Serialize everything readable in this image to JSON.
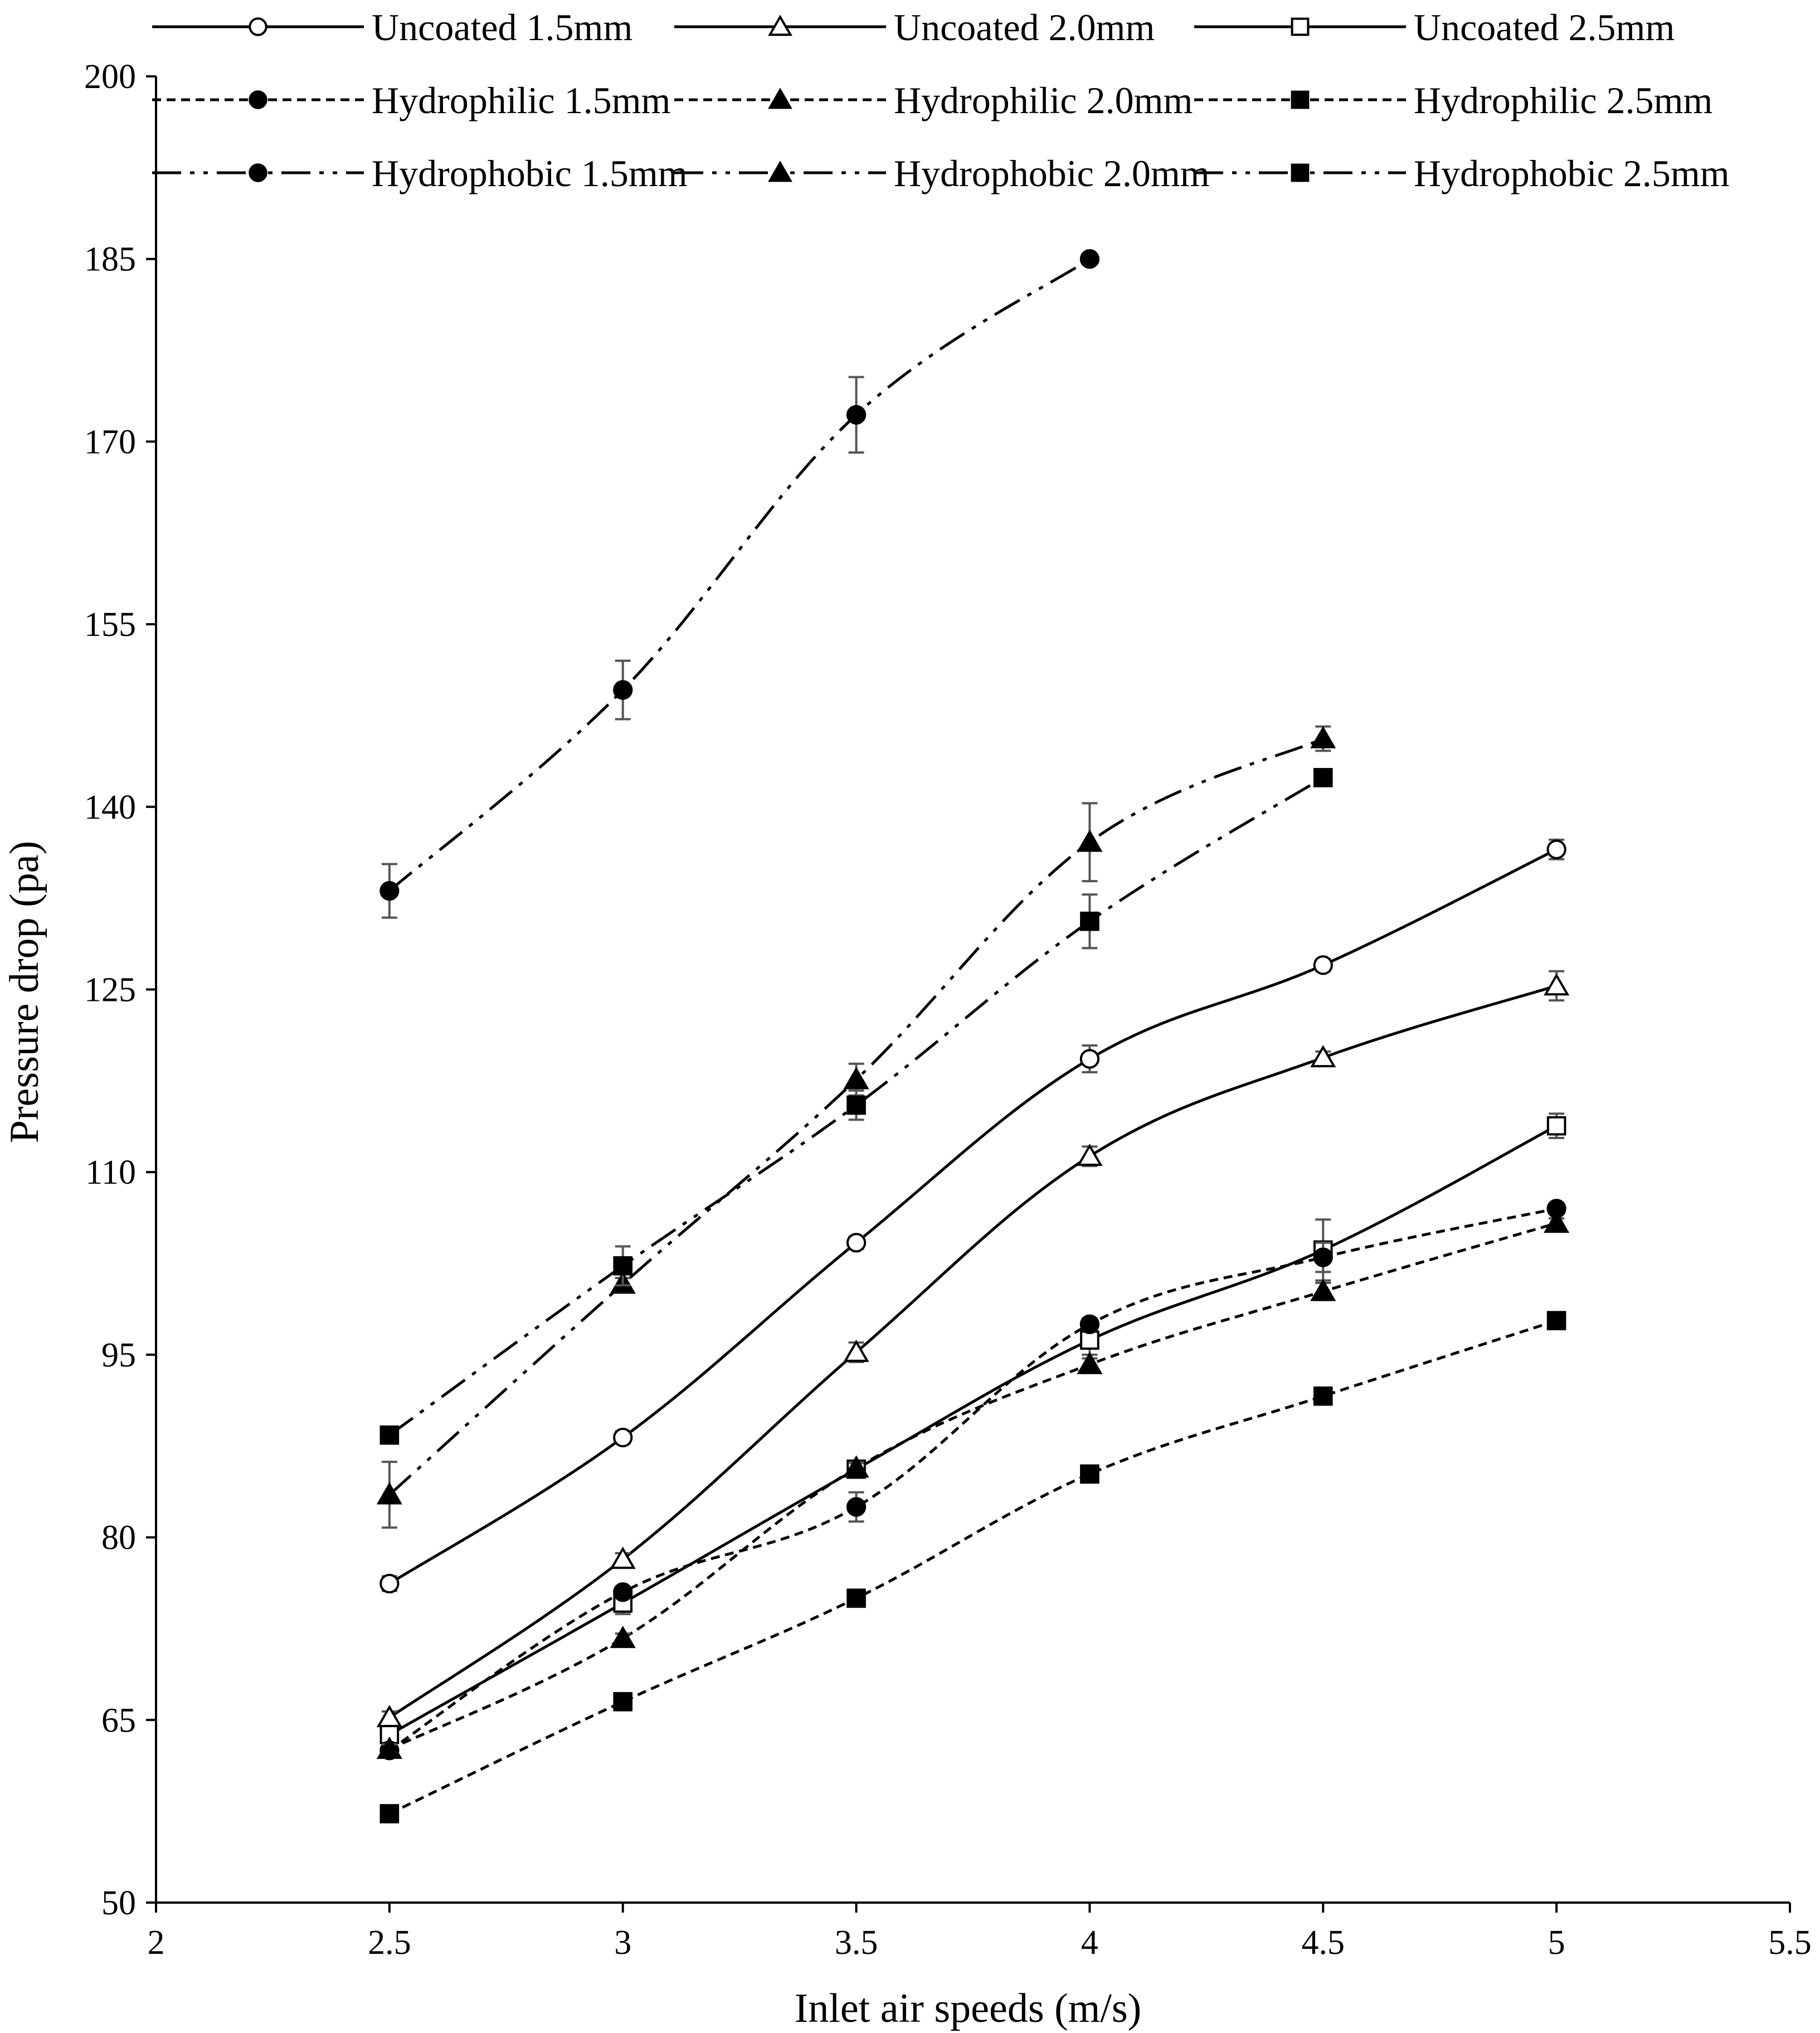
{
  "chart_data": {
    "type": "line",
    "title": "",
    "xlabel": "Inlet air speeds (m/s)",
    "ylabel": "Pressure drop (pa)",
    "xlim": [
      2,
      5.5
    ],
    "ylim": [
      50,
      200
    ],
    "xticks": [
      2,
      2.5,
      3,
      3.5,
      4,
      4.5,
      5,
      5.5
    ],
    "yticks": [
      50,
      65,
      80,
      95,
      110,
      125,
      140,
      155,
      170,
      185,
      200
    ],
    "xtick_labels": [
      "2",
      "2.5",
      "3",
      "3.5",
      "4",
      "4.5",
      "5",
      "5.5"
    ],
    "ytick_labels": [
      "50",
      "65",
      "80",
      "95",
      "110",
      "125",
      "140",
      "155",
      "170",
      "185",
      "200"
    ],
    "grid": false,
    "legend_position": "top",
    "series": [
      {
        "name": "Uncoated 1.5mm",
        "line": "solid",
        "marker": "circle",
        "filled": false,
        "x": [
          2.5,
          3,
          3.5,
          4,
          4.5,
          5
        ],
        "values": [
          76.2,
          88.2,
          104.2,
          119.3,
          127,
          136.5
        ],
        "error": [
          0.6,
          0.5,
          0.5,
          1.1,
          0.5,
          0.8
        ]
      },
      {
        "name": "Uncoated 2.0mm",
        "line": "solid",
        "marker": "triangle",
        "filled": false,
        "x": [
          2.5,
          3,
          3.5,
          4,
          4.5,
          5
        ],
        "values": [
          65.2,
          78.2,
          95.2,
          111.3,
          119.4,
          125.3
        ],
        "error": [
          0.5,
          0.5,
          0.8,
          0.8,
          0.5,
          1.2
        ]
      },
      {
        "name": "Uncoated 2.5mm",
        "line": "solid",
        "marker": "square",
        "filled": false,
        "x": [
          2.5,
          3,
          3.5,
          4,
          4.5,
          5
        ],
        "values": [
          63.8,
          74.6,
          85.6,
          96.2,
          103.6,
          113.8
        ],
        "error": [
          0.5,
          0.9,
          0.6,
          1.2,
          2.5,
          1.0
        ]
      },
      {
        "name": "Hydrophilic 1.5mm",
        "line": "dashed",
        "marker": "circle",
        "filled": true,
        "x": [
          2.5,
          3,
          3.5,
          4,
          4.5,
          5
        ],
        "values": [
          62.5,
          75.5,
          82.5,
          97.5,
          103,
          107
        ],
        "error": [
          0.4,
          0.4,
          1.2,
          0.5,
          1.2,
          0.4
        ]
      },
      {
        "name": "Hydrophilic 2.0mm",
        "line": "dashed",
        "marker": "triangle",
        "filled": true,
        "x": [
          2.5,
          3,
          3.5,
          4,
          4.5,
          5
        ],
        "values": [
          62.6,
          71.7,
          85.7,
          94.2,
          100.2,
          105.8
        ],
        "error": [
          0.4,
          0.4,
          0.4,
          0.5,
          0.7,
          0.4
        ]
      },
      {
        "name": "Hydrophilic 2.5mm",
        "line": "dashed",
        "marker": "square",
        "filled": true,
        "x": [
          2.5,
          3,
          3.5,
          4,
          4.5,
          5
        ],
        "values": [
          57.3,
          66.5,
          75.0,
          85.2,
          91.6,
          97.8
        ],
        "error": [
          0.3,
          0.3,
          0.3,
          0.3,
          0.3,
          0.3
        ]
      },
      {
        "name": "Hydrophobic 1.5mm",
        "line": "dashdotdot",
        "marker": "circle",
        "filled": true,
        "x": [
          2.5,
          3,
          3.5,
          4
        ],
        "values": [
          133.1,
          149.6,
          172.2,
          185
        ],
        "error": [
          2.2,
          2.4,
          3.1,
          0.3
        ]
      },
      {
        "name": "Hydrophobic 2.0mm",
        "line": "dashdotdot",
        "marker": "triangle",
        "filled": true,
        "x": [
          2.5,
          3,
          3.5,
          4,
          4.5
        ],
        "values": [
          83.5,
          100.8,
          117.6,
          137.1,
          145.6
        ],
        "error": [
          2.7,
          0.5,
          1.3,
          3.2,
          1.0
        ]
      },
      {
        "name": "Hydrophobic 2.5mm",
        "line": "dashdotdot",
        "marker": "square",
        "filled": true,
        "x": [
          2.5,
          3,
          3.5,
          4,
          4.5
        ],
        "values": [
          88.4,
          102.3,
          115.5,
          130.6,
          142.4
        ],
        "error": [
          0.4,
          1.6,
          1.2,
          2.2,
          0.4
        ]
      }
    ]
  }
}
